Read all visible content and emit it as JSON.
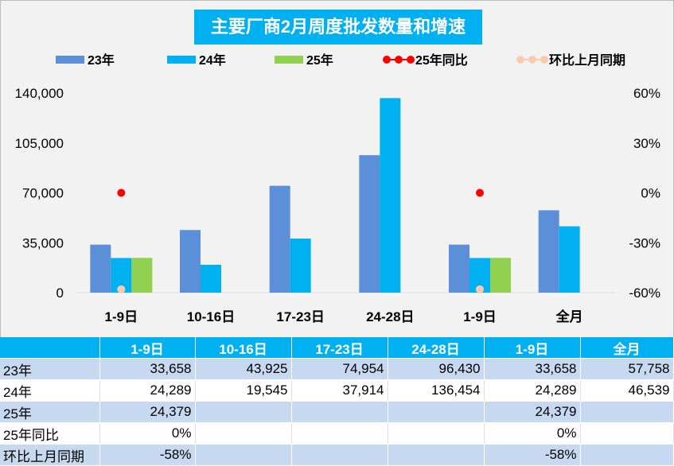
{
  "chart_data": {
    "type": "bar",
    "title": "主要厂商2月周度批发数量和增速",
    "categories": [
      "1-9日",
      "10-16日",
      "17-23日",
      "24-28日",
      "1-9日",
      "全月"
    ],
    "series": [
      {
        "name": "23年",
        "values": [
          33658,
          43925,
          74954,
          96430,
          33658,
          57758
        ],
        "color": "#5b8fd8",
        "axis": "left"
      },
      {
        "name": "24年",
        "values": [
          24289,
          19545,
          37914,
          136454,
          24289,
          46539
        ],
        "color": "#00b0f0",
        "axis": "left"
      },
      {
        "name": "25年",
        "values": [
          24379,
          null,
          null,
          null,
          24379,
          null
        ],
        "color": "#92d050",
        "axis": "left"
      },
      {
        "name": "25年同比",
        "values": [
          0,
          null,
          null,
          null,
          0,
          null
        ],
        "color": "#ff0000",
        "axis": "right",
        "kind": "scatter"
      },
      {
        "name": "环比上月同期",
        "values": [
          -58,
          null,
          null,
          null,
          -58,
          null
        ],
        "color": "#f8cbad",
        "axis": "right",
        "kind": "scatter"
      }
    ],
    "y_left": {
      "min": 0,
      "max": 140000,
      "ticks": [
        "0",
        "35,000",
        "70,000",
        "105,000",
        "140,000"
      ]
    },
    "y_right": {
      "min": -60,
      "max": 60,
      "ticks": [
        "-60%",
        "-30%",
        "0%",
        "30%",
        "60%"
      ]
    },
    "legend": "top",
    "grid": false
  },
  "table": {
    "header": [
      "",
      "1-9日",
      "10-16日",
      "17-23日",
      "24-28日",
      "1-9日",
      "全月"
    ],
    "rows": [
      [
        "23年",
        "33,658",
        "43,925",
        "74,954",
        "96,430",
        "33,658",
        "57,758"
      ],
      [
        "24年",
        "24,289",
        "19,545",
        "37,914",
        "136,454",
        "24,289",
        "46,539"
      ],
      [
        "25年",
        "24,379",
        "",
        "",
        "",
        "24,379",
        ""
      ],
      [
        "25年同比",
        "0%",
        "",
        "",
        "",
        "0%",
        ""
      ],
      [
        "环比上月同期",
        "-58%",
        "",
        "",
        "",
        "-58%",
        ""
      ]
    ]
  }
}
